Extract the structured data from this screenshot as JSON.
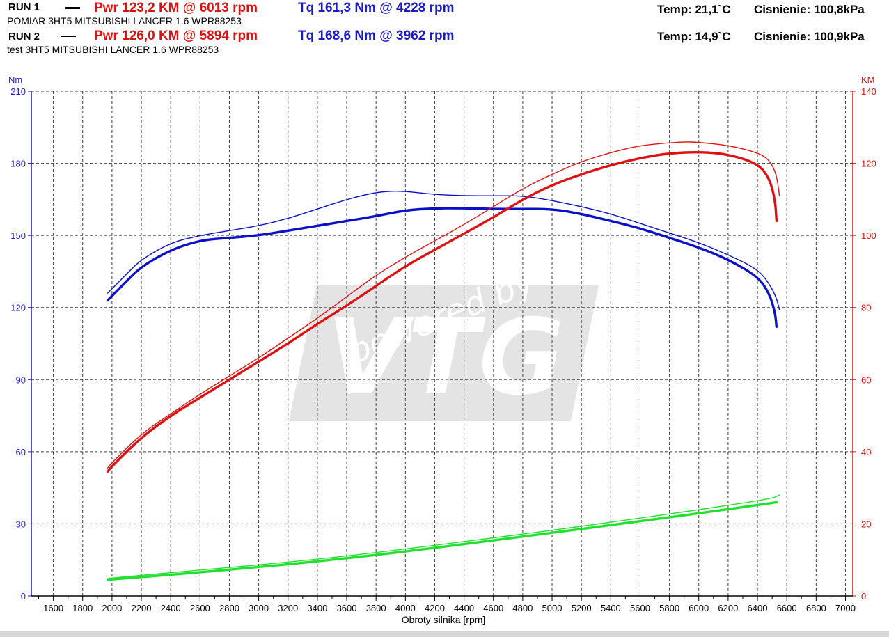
{
  "header": {
    "run1": {
      "label": "RUN 1",
      "desc": "POMIAR  3HT5 MITSUBISHI LANCER 1.6 WPR88253",
      "pwr": "Pwr  123,2 KM @ 6013 rpm",
      "tq": "Tq 161,3 Nm @ 4228 rpm",
      "temp": "Temp: 21,1`C",
      "pressure": "Cisnienie: 100,8kPa"
    },
    "run2": {
      "label": "RUN 2",
      "desc": "test 3HT5 MITSUBISHI LANCER 1.6 WPR88253",
      "pwr": "Pwr  126,0 KM @ 5894 rpm",
      "tq": "Tq 168,6 Nm @ 3962 rpm",
      "temp": "Temp: 14,9`C",
      "pressure": "Cisnienie: 100,9kPa"
    }
  },
  "chart_data": {
    "type": "line",
    "xlabel": "Obroty silnika [rpm]",
    "ylabel_left": "Nm",
    "ylabel_right": "KM",
    "xlim": [
      1450,
      7050
    ],
    "ylim_left": [
      0,
      210
    ],
    "ylim_right": [
      0,
      140
    ],
    "x_ticks": [
      1600,
      1800,
      2000,
      2200,
      2400,
      2600,
      2800,
      3000,
      3200,
      3400,
      3600,
      3800,
      4000,
      4200,
      4400,
      4600,
      4800,
      5000,
      5200,
      5400,
      5600,
      5800,
      6000,
      6200,
      6400,
      6600,
      6800,
      7000
    ],
    "y_ticks_left": [
      0,
      30,
      60,
      90,
      120,
      150,
      180,
      210
    ],
    "y_ticks_right": [
      0,
      20,
      40,
      60,
      80,
      100,
      120,
      140
    ],
    "grid": true,
    "colors": {
      "torque": "#0a10c8",
      "power": "#e01010",
      "loss": "#22e030",
      "axis_left": "#1a1acc",
      "axis_right": "#dd1010"
    },
    "watermark": "powered by VTG",
    "series": [
      {
        "name": "RUN 1",
        "quantity": "torque",
        "axis": "left",
        "weight": "thick",
        "x": [
          1970,
          2100,
          2200,
          2400,
          2600,
          2800,
          3000,
          3200,
          3400,
          3600,
          3800,
          4000,
          4200,
          4400,
          4600,
          4800,
          5000,
          5200,
          5400,
          5600,
          5800,
          6000,
          6200,
          6400,
          6480,
          6520,
          6530
        ],
        "y": [
          123,
          131,
          137,
          144,
          148,
          149,
          150,
          152,
          154,
          156,
          158,
          160.5,
          161.3,
          161.3,
          161,
          161,
          161,
          159,
          156,
          153,
          149,
          145,
          140,
          133,
          126,
          118,
          112
        ]
      },
      {
        "name": "RUN 2",
        "quantity": "torque",
        "axis": "left",
        "weight": "thin",
        "x": [
          1970,
          2100,
          2200,
          2400,
          2600,
          2800,
          3000,
          3200,
          3400,
          3600,
          3800,
          3962,
          4200,
          4400,
          4600,
          4800,
          5000,
          5200,
          5400,
          5600,
          5800,
          6000,
          6200,
          6400,
          6480,
          6530,
          6550
        ],
        "y": [
          126,
          134,
          140,
          147,
          150,
          152,
          154,
          157,
          161,
          165,
          168,
          168.6,
          167,
          166.5,
          166.5,
          166.5,
          164.5,
          162,
          159,
          155,
          151,
          147,
          142,
          136,
          130,
          124,
          119
        ]
      },
      {
        "name": "RUN 1",
        "quantity": "power",
        "axis": "right",
        "weight": "thick",
        "x": [
          1970,
          2000,
          2200,
          2400,
          2600,
          2800,
          3000,
          3200,
          3400,
          3600,
          3800,
          4000,
          4200,
          4400,
          4600,
          4800,
          5000,
          5200,
          5400,
          5600,
          5800,
          6013,
          6200,
          6400,
          6480,
          6520,
          6530
        ],
        "y": [
          34.5,
          36,
          44,
          50,
          55,
          60,
          65,
          70,
          75.5,
          80.5,
          86,
          91.5,
          96,
          100.5,
          105,
          110,
          114,
          117,
          119.5,
          121.5,
          122.8,
          123.2,
          122.5,
          120,
          116,
          110,
          104
        ]
      },
      {
        "name": "RUN 2",
        "quantity": "power",
        "axis": "right",
        "weight": "thin",
        "x": [
          1970,
          2000,
          2200,
          2400,
          2600,
          2800,
          3000,
          3200,
          3400,
          3600,
          3800,
          4000,
          4200,
          4400,
          4600,
          4800,
          5000,
          5200,
          5400,
          5600,
          5894,
          6000,
          6200,
          6400,
          6480,
          6530,
          6550
        ],
        "y": [
          35.5,
          37,
          45,
          50.5,
          56,
          61,
          66,
          71.5,
          77,
          83,
          89,
          94,
          98.5,
          103,
          108,
          113,
          117,
          120.5,
          123,
          125,
          126,
          125.8,
          125,
          123,
          121,
          117,
          111
        ]
      },
      {
        "name": "RUN 1",
        "quantity": "loss",
        "axis": "right",
        "weight": "thick",
        "x": [
          1970,
          2000,
          2500,
          3000,
          3500,
          4000,
          4500,
          5000,
          5500,
          6000,
          6500,
          6530
        ],
        "y": [
          4.5,
          4.6,
          6.2,
          8,
          10,
          12.3,
          14.9,
          17.5,
          20.2,
          22.9,
          25.8,
          26
        ]
      },
      {
        "name": "RUN 2",
        "quantity": "loss",
        "axis": "right",
        "weight": "thin",
        "x": [
          1970,
          2000,
          2500,
          3000,
          3500,
          4000,
          4500,
          5000,
          5500,
          6000,
          6500,
          6550
        ],
        "y": [
          4.8,
          5,
          6.8,
          8.6,
          10.6,
          13,
          15.6,
          18.2,
          21,
          23.9,
          27,
          28
        ]
      }
    ]
  }
}
